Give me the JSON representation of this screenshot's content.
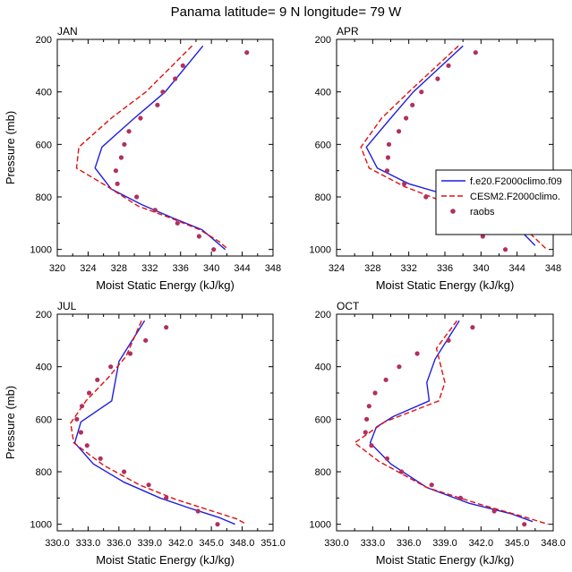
{
  "title": "Panama  latitude= 9 N longitude= 79 W",
  "colors": {
    "model1": "#1f1fe0",
    "model2": "#e01010",
    "obs": "#b03060",
    "axis": "#000000"
  },
  "legend": {
    "entries": [
      {
        "label": "f.e20.F2000climo.f09",
        "style": "solid",
        "color": "#1f1fe0"
      },
      {
        "label": "CESM2.F2000climo.",
        "style": "dashed",
        "color": "#e01010"
      },
      {
        "label": "raobs",
        "style": "marker",
        "color": "#b03060"
      }
    ]
  },
  "chart_data": [
    {
      "type": "line",
      "panel": "JAN",
      "xlabel": "Moist Static Energy (kJ/kg)",
      "ylabel": "Pressure (mb)",
      "xlim": [
        320,
        348
      ],
      "ylim": [
        1025,
        200
      ],
      "xticks": [
        320,
        324,
        328,
        332,
        336,
        340,
        344,
        348
      ],
      "xticklabels": [
        "320",
        "324",
        "328",
        "332",
        "336",
        "340",
        "344",
        "348"
      ],
      "yticks": [
        200,
        400,
        600,
        800,
        1000
      ],
      "series": [
        {
          "name": "f.e20.F2000climo.f09",
          "style": "solid",
          "color": "#1f1fe0",
          "points": [
            [
              338.9,
              225
            ],
            [
              334,
              400
            ],
            [
              330,
              500
            ],
            [
              325.8,
              610
            ],
            [
              324.9,
              690
            ],
            [
              327,
              770
            ],
            [
              331,
              830
            ],
            [
              335,
              880
            ],
            [
              338.8,
              925
            ],
            [
              340.8,
              975
            ],
            [
              341.8,
              1000
            ]
          ]
        },
        {
          "name": "CESM2.F2000climo.",
          "style": "dashed",
          "color": "#e01010",
          "points": [
            [
              337.5,
              225
            ],
            [
              331.5,
              400
            ],
            [
              327,
              500
            ],
            [
              322.8,
              610
            ],
            [
              322.5,
              690
            ],
            [
              326.5,
              760
            ],
            [
              330.5,
              835
            ],
            [
              334.7,
              880
            ],
            [
              338.5,
              925
            ],
            [
              341,
              970
            ],
            [
              342.2,
              1000
            ]
          ]
        },
        {
          "name": "raobs",
          "style": "marker",
          "color": "#b03060",
          "points": [
            [
              344.6,
              250
            ],
            [
              336.3,
              300
            ],
            [
              335.3,
              350
            ],
            [
              333.7,
              400
            ],
            [
              333,
              450
            ],
            [
              330.8,
              500
            ],
            [
              329.3,
              550
            ],
            [
              328.7,
              600
            ],
            [
              328.3,
              650
            ],
            [
              327.6,
              700
            ],
            [
              327.8,
              750
            ],
            [
              330.3,
              800
            ],
            [
              332.7,
              850
            ],
            [
              335.6,
              900
            ],
            [
              338.4,
              950
            ],
            [
              340.3,
              1000
            ]
          ]
        }
      ]
    },
    {
      "type": "line",
      "panel": "APR",
      "xlabel": "Moist Static Energy (kJ/kg)",
      "ylabel": "",
      "xlim": [
        324,
        348
      ],
      "ylim": [
        1025,
        200
      ],
      "xticks": [
        324,
        328,
        332,
        336,
        340,
        344,
        348
      ],
      "xticklabels": [
        "324",
        "328",
        "332",
        "336",
        "340",
        "344",
        "348"
      ],
      "yticks": [
        200,
        400,
        600,
        800,
        1000
      ],
      "series": [
        {
          "name": "f.e20.F2000climo.f09",
          "style": "solid",
          "color": "#1f1fe0",
          "points": [
            [
              338,
              225
            ],
            [
              332.5,
              400
            ],
            [
              330,
              500
            ],
            [
              327.3,
              610
            ],
            [
              328.5,
              690
            ],
            [
              332,
              750
            ],
            [
              337,
              800
            ],
            [
              341,
              850
            ],
            [
              344,
              915
            ],
            [
              346,
              985
            ]
          ]
        },
        {
          "name": "CESM2.F2000climo.",
          "style": "dashed",
          "color": "#e01010",
          "points": [
            [
              337.5,
              225
            ],
            [
              332,
              400
            ],
            [
              329,
              500
            ],
            [
              326.7,
              610
            ],
            [
              327.6,
              690
            ],
            [
              331.5,
              760
            ],
            [
              336,
              820
            ],
            [
              341,
              870
            ],
            [
              344.7,
              915
            ],
            [
              347.3,
              1000
            ]
          ]
        },
        {
          "name": "raobs",
          "style": "marker",
          "color": "#b03060",
          "points": [
            [
              339.4,
              250
            ],
            [
              336.4,
              300
            ],
            [
              335.2,
              350
            ],
            [
              333.4,
              400
            ],
            [
              332.4,
              450
            ],
            [
              331.7,
              500
            ],
            [
              330.9,
              550
            ],
            [
              329.8,
              600
            ],
            [
              329.7,
              650
            ],
            [
              329.6,
              700
            ],
            [
              331.5,
              750
            ],
            [
              333.9,
              800
            ],
            [
              335.5,
              850
            ],
            [
              338,
              900
            ],
            [
              340.2,
              950
            ],
            [
              342.7,
              1000
            ]
          ]
        }
      ]
    },
    {
      "type": "line",
      "panel": "JUL",
      "xlabel": "Moist Static Energy (kJ/kg)",
      "ylabel": "Pressure (mb)",
      "xlim": [
        330,
        351
      ],
      "ylim": [
        1025,
        200
      ],
      "xticks": [
        330,
        333,
        336,
        339,
        342,
        345,
        348,
        351
      ],
      "xticklabels": [
        "330.0",
        "333.0",
        "336.0",
        "339.0",
        "342.0",
        "345.0",
        "348.0",
        "351.0"
      ],
      "yticks": [
        200,
        400,
        600,
        800,
        1000
      ],
      "series": [
        {
          "name": "f.e20.F2000climo.f09",
          "style": "solid",
          "color": "#1f1fe0",
          "points": [
            [
              338.5,
              225
            ],
            [
              336,
              380
            ],
            [
              335.3,
              530
            ],
            [
              332.3,
              610
            ],
            [
              331.7,
              690
            ],
            [
              333.5,
              770
            ],
            [
              336.5,
              840
            ],
            [
              340,
              900
            ],
            [
              343,
              940
            ],
            [
              345.8,
              975
            ],
            [
              347.3,
              1000
            ]
          ]
        },
        {
          "name": "CESM2.F2000climo.",
          "style": "dashed",
          "color": "#e01010",
          "points": [
            [
              338.2,
              225
            ],
            [
              336.7,
              360
            ],
            [
              335,
              440
            ],
            [
              332.8,
              530
            ],
            [
              331.3,
              615
            ],
            [
              331.6,
              690
            ],
            [
              334.5,
              775
            ],
            [
              338,
              850
            ],
            [
              341.5,
              905
            ],
            [
              344.7,
              945
            ],
            [
              347.5,
              980
            ],
            [
              348.4,
              1000
            ]
          ]
        },
        {
          "name": "raobs",
          "style": "marker",
          "color": "#b03060",
          "points": [
            [
              340.6,
              250
            ],
            [
              338.6,
              300
            ],
            [
              337.1,
              350
            ],
            [
              335.2,
              400
            ],
            [
              333.9,
              450
            ],
            [
              333.1,
              500
            ],
            [
              332.4,
              550
            ],
            [
              331.9,
              600
            ],
            [
              332.3,
              650
            ],
            [
              332.9,
              700
            ],
            [
              334.2,
              750
            ],
            [
              336.5,
              800
            ],
            [
              338.9,
              850
            ],
            [
              340.6,
              900
            ],
            [
              343.7,
              950
            ],
            [
              345.6,
              1000
            ]
          ]
        }
      ]
    },
    {
      "type": "line",
      "panel": "OCT",
      "xlabel": "Moist Static Energy (kJ/kg)",
      "ylabel": "",
      "xlim": [
        330,
        348
      ],
      "ylim": [
        1025,
        200
      ],
      "xticks": [
        330,
        333,
        336,
        339,
        342,
        345,
        348
      ],
      "xticklabels": [
        "330.0",
        "333.0",
        "336.0",
        "339.0",
        "342.0",
        "345.0",
        "348.0"
      ],
      "yticks": [
        200,
        400,
        600,
        800,
        1000
      ],
      "series": [
        {
          "name": "f.e20.F2000climo.f09",
          "style": "solid",
          "color": "#1f1fe0",
          "points": [
            [
              340.2,
              225
            ],
            [
              338.2,
              370
            ],
            [
              337.5,
              460
            ],
            [
              337.7,
              530
            ],
            [
              334.7,
              590
            ],
            [
              333.3,
              630
            ],
            [
              332.8,
              690
            ],
            [
              334.5,
              770
            ],
            [
              337.5,
              860
            ],
            [
              341,
              920
            ],
            [
              344.5,
              960
            ],
            [
              346.3,
              990
            ]
          ]
        },
        {
          "name": "CESM2.F2000climo.",
          "style": "dashed",
          "color": "#e01010",
          "points": [
            [
              340,
              225
            ],
            [
              338.3,
              330
            ],
            [
              339,
              460
            ],
            [
              338.5,
              530
            ],
            [
              334,
              610
            ],
            [
              331.5,
              690
            ],
            [
              333.5,
              760
            ],
            [
              337.5,
              860
            ],
            [
              342,
              925
            ],
            [
              345.8,
              975
            ],
            [
              347.6,
              1000
            ]
          ]
        },
        {
          "name": "raobs",
          "style": "marker",
          "color": "#b03060",
          "points": [
            [
              341.3,
              250
            ],
            [
              339.3,
              300
            ],
            [
              336.7,
              350
            ],
            [
              335.2,
              400
            ],
            [
              334.1,
              450
            ],
            [
              333.2,
              500
            ],
            [
              332.7,
              550
            ],
            [
              332.5,
              600
            ],
            [
              332.4,
              650
            ],
            [
              332.9,
              700
            ],
            [
              334.2,
              750
            ],
            [
              335.4,
              800
            ],
            [
              337.9,
              850
            ],
            [
              340.3,
              900
            ],
            [
              343.1,
              950
            ],
            [
              345.6,
              1000
            ]
          ]
        }
      ]
    }
  ]
}
